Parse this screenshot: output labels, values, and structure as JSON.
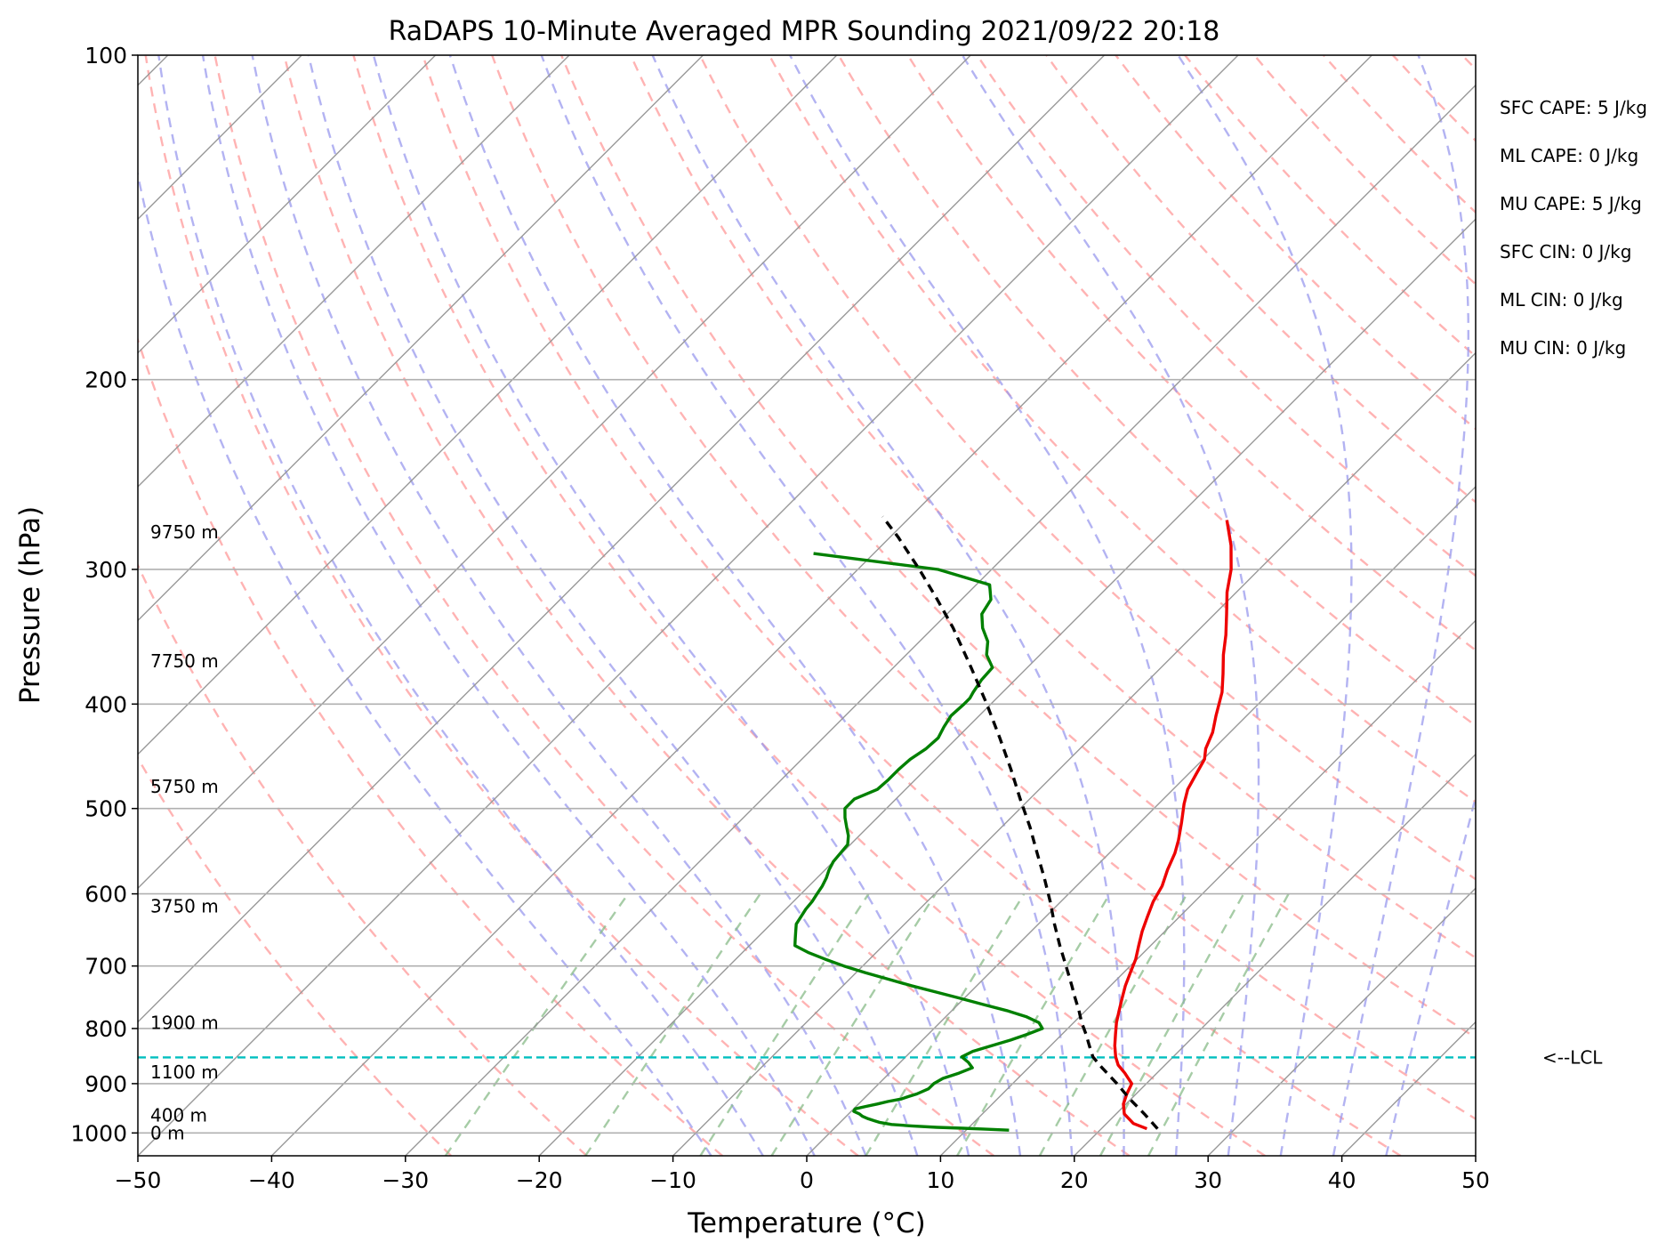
{
  "chart_data": {
    "type": "line",
    "title": "RaDAPS 10-Minute Averaged MPR Sounding 2021/09/22 20:18",
    "xlabel": "Temperature (°C)",
    "ylabel": "Pressure (hPa)",
    "xlim": [
      -50,
      50
    ],
    "ylim": [
      1050,
      100
    ],
    "y_scale": "log",
    "x_ticks": [
      -50,
      -40,
      -30,
      -20,
      -10,
      0,
      10,
      20,
      30,
      40,
      50
    ],
    "x_tick_labels": [
      "−50",
      "−40",
      "−30",
      "−20",
      "−10",
      "0",
      "10",
      "20",
      "30",
      "40",
      "50"
    ],
    "y_ticks": [
      100,
      200,
      300,
      400,
      500,
      600,
      700,
      800,
      900,
      1000
    ],
    "y_tick_labels": [
      "100",
      "200",
      "300",
      "400",
      "500",
      "600",
      "700",
      "800",
      "900",
      "1000"
    ],
    "grid": true,
    "skew": true,
    "series": [
      {
        "role": "temperature",
        "color": "#ee0000",
        "pressure": [
          991,
          980,
          960,
          940,
          920,
          900,
          880,
          865,
          850,
          830,
          810,
          790,
          770,
          750,
          730,
          710,
          690,
          670,
          650,
          630,
          610,
          590,
          570,
          550,
          535,
          515,
          495,
          480,
          465,
          450,
          440,
          425,
          410,
          390,
          375,
          360,
          345,
          330,
          315,
          300,
          285,
          270
        ],
        "values": [
          23.4,
          22.0,
          20.6,
          19.8,
          19.3,
          18.9,
          17.6,
          16.5,
          15.7,
          14.8,
          14.0,
          13.2,
          12.5,
          11.8,
          11.1,
          10.5,
          9.9,
          9.1,
          8.3,
          7.6,
          6.9,
          6.4,
          5.6,
          4.9,
          4.2,
          3.1,
          1.9,
          1.1,
          0.6,
          0.1,
          -0.6,
          -1.3,
          -2.3,
          -3.6,
          -4.9,
          -6.3,
          -7.6,
          -9.1,
          -10.7,
          -12.1,
          -13.9,
          -16.1
        ]
      },
      {
        "role": "dewpoint",
        "color": "#008000",
        "pressure": [
          994,
          992,
          990,
          988,
          985,
          982,
          978,
          974,
          970,
          965,
          960,
          955,
          950,
          945,
          940,
          935,
          930,
          925,
          920,
          910,
          900,
          890,
          880,
          870,
          860,
          850,
          840,
          830,
          820,
          810,
          800,
          790,
          780,
          770,
          760,
          750,
          740,
          730,
          720,
          710,
          700,
          690,
          680,
          670,
          660,
          650,
          640,
          630,
          620,
          610,
          600,
          590,
          580,
          570,
          560,
          550,
          540,
          530,
          520,
          510,
          500,
          490,
          480,
          470,
          460,
          450,
          440,
          430,
          420,
          410,
          400,
          395,
          390,
          380,
          370,
          360,
          350,
          340,
          330,
          320,
          310,
          300,
          290
        ],
        "values": [
          13.2,
          11.4,
          9.6,
          7.6,
          5.6,
          4.0,
          3.0,
          2.4,
          1.8,
          1.2,
          0.8,
          0.2,
          0.1,
          0.7,
          1.4,
          2.0,
          2.8,
          3.2,
          3.6,
          4.1,
          4.1,
          4.4,
          5.2,
          5.8,
          5.1,
          4.2,
          4.6,
          5.6,
          6.6,
          7.4,
          8.1,
          7.4,
          6.0,
          4.1,
          1.9,
          -0.3,
          -2.6,
          -4.9,
          -7.1,
          -9.3,
          -11.4,
          -13.3,
          -15.1,
          -16.6,
          -17.1,
          -17.6,
          -18.1,
          -18.3,
          -18.5,
          -18.6,
          -18.8,
          -19.0,
          -19.3,
          -19.7,
          -20.0,
          -20.1,
          -20.2,
          -20.8,
          -21.6,
          -22.4,
          -23.1,
          -23.1,
          -22.1,
          -22.0,
          -22.0,
          -21.9,
          -21.5,
          -21.4,
          -21.8,
          -22.1,
          -22.0,
          -22.0,
          -22.2,
          -22.5,
          -22.6,
          -24.0,
          -24.9,
          -26.3,
          -27.4,
          -27.8,
          -29.0,
          -34.0,
          -44.5
        ]
      },
      {
        "role": "parcel",
        "color": "#000000",
        "pressure": [
          991,
          960,
          930,
          900,
          870,
          850,
          830,
          810,
          790,
          770,
          750,
          730,
          700,
          670,
          640,
          610,
          580,
          550,
          520,
          490,
          460,
          430,
          400,
          370,
          340,
          320,
          300,
          280,
          268
        ],
        "values": [
          24.2,
          22.1,
          19.9,
          17.8,
          15.5,
          14.0,
          12.9,
          11.8,
          10.6,
          9.5,
          8.3,
          7.1,
          5.2,
          3.2,
          1.2,
          -0.8,
          -3.0,
          -5.4,
          -7.9,
          -10.7,
          -13.6,
          -16.8,
          -20.3,
          -24.2,
          -28.5,
          -31.8,
          -35.4,
          -39.4,
          -42.1
        ]
      }
    ],
    "height_labels": [
      {
        "text": "9750 m",
        "pressure": 277
      },
      {
        "text": "7750 m",
        "pressure": 365
      },
      {
        "text": "5750 m",
        "pressure": 477
      },
      {
        "text": "3750 m",
        "pressure": 616
      },
      {
        "text": "1900 m",
        "pressure": 790
      },
      {
        "text": "1100 m",
        "pressure": 878
      },
      {
        "text": "400 m",
        "pressure": 963
      },
      {
        "text": "0 m",
        "pressure": 1000
      }
    ],
    "lcl": {
      "label": "<--LCL",
      "pressure": 851,
      "color": "#00bfbf"
    },
    "indices": [
      "SFC CAPE: 5 J/kg",
      "ML CAPE: 0 J/kg",
      "MU CAPE: 5 J/kg",
      "SFC CIN: 0 J/kg",
      "ML CIN: 0 J/kg",
      "MU CIN: 0 J/kg"
    ],
    "reference_lines": {
      "dry_adiabats": {
        "color": "#ff9999",
        "style": "dashed"
      },
      "moist_adiabats": {
        "color": "#9999ee",
        "style": "dashed"
      },
      "mixing_ratio": {
        "color": "#88bb88",
        "style": "dashed"
      },
      "isotherms": {
        "color": "#999999",
        "style": "solid"
      }
    }
  }
}
